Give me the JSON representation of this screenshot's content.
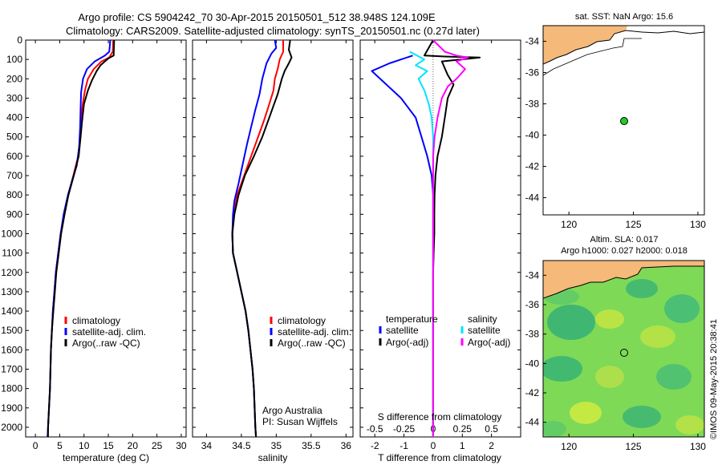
{
  "header": {
    "line1": "Argo profile: CS 5904242_70 30-Apr-2015 20150501_512 38.948S 124.109E",
    "line2": "Climatology: CARS2009. Satellite-adjusted climatology: synTS_20150501.nc (0.27d later)"
  },
  "colors": {
    "climatology": "#ff0000",
    "satellite": "#0000ff",
    "argo": "#000000",
    "sal_satellite": "#00e5ff",
    "sal_argo": "#ff00ff",
    "land": "#f5b97a",
    "float_marker": "#22cc22"
  },
  "chart_data": [
    {
      "type": "line",
      "id": "temperature",
      "xlabel": "temperature (deg C)",
      "ylabel": "",
      "xlim": [
        -2,
        31
      ],
      "ylim": [
        2050,
        0
      ],
      "xticks": [
        0,
        5,
        10,
        15,
        20,
        25,
        30
      ],
      "yticks": [
        0,
        100,
        200,
        300,
        400,
        500,
        600,
        700,
        800,
        900,
        1000,
        1100,
        1200,
        1300,
        1400,
        1500,
        1600,
        1700,
        1800,
        1900,
        2000
      ],
      "legend": [
        "climatology",
        "satellite-adj. clim.",
        "Argo(..raw -QC)"
      ],
      "series": [
        {
          "name": "climatology",
          "color": "#ff0000",
          "points": [
            [
              16,
              0
            ],
            [
              15.9,
              60
            ],
            [
              15.2,
              90
            ],
            [
              13.6,
              110
            ],
            [
              12,
              150
            ],
            [
              10.8,
              200
            ],
            [
              10.2,
              260
            ],
            [
              9.8,
              320
            ],
            [
              9.4,
              400
            ],
            [
              9.2,
              500
            ],
            [
              8.8,
              600
            ],
            [
              7.8,
              700
            ],
            [
              6.8,
              800
            ],
            [
              5.9,
              900
            ],
            [
              5.2,
              1000
            ],
            [
              4.7,
              1100
            ],
            [
              4.2,
              1200
            ],
            [
              3.9,
              1300
            ],
            [
              3.6,
              1400
            ],
            [
              3.4,
              1500
            ],
            [
              3.2,
              1600
            ],
            [
              3,
              1800
            ],
            [
              2.8,
              1900
            ],
            [
              2.6,
              2000
            ],
            [
              2.5,
              2050
            ]
          ]
        },
        {
          "name": "satellite-adj. clim.",
          "color": "#0000ff",
          "points": [
            [
              15.4,
              0
            ],
            [
              15.2,
              60
            ],
            [
              14.3,
              80
            ],
            [
              12.2,
              110
            ],
            [
              10.6,
              150
            ],
            [
              9.8,
              200
            ],
            [
              9.4,
              270
            ],
            [
              9.3,
              350
            ],
            [
              9.2,
              450
            ],
            [
              9,
              550
            ],
            [
              8.5,
              650
            ],
            [
              7.6,
              720
            ],
            [
              6.7,
              800
            ],
            [
              5.8,
              900
            ],
            [
              5.2,
              1000
            ],
            [
              4.7,
              1100
            ],
            [
              4.2,
              1200
            ],
            [
              3.9,
              1300
            ],
            [
              3.6,
              1400
            ],
            [
              3.4,
              1500
            ],
            [
              3.2,
              1600
            ],
            [
              3,
              1800
            ],
            [
              2.8,
              1900
            ],
            [
              2.6,
              2000
            ],
            [
              2.5,
              2050
            ]
          ]
        },
        {
          "name": "Argo(..raw -QC)",
          "color": "#000000",
          "points": [
            [
              16.2,
              0
            ],
            [
              16.1,
              80
            ],
            [
              15,
              95
            ],
            [
              13.4,
              130
            ],
            [
              12.6,
              160
            ],
            [
              11.6,
              210
            ],
            [
              10.8,
              260
            ],
            [
              10,
              330
            ],
            [
              9.6,
              420
            ],
            [
              9.3,
              500
            ],
            [
              8.9,
              600
            ],
            [
              7.9,
              700
            ],
            [
              6.8,
              800
            ],
            [
              6,
              900
            ],
            [
              5.3,
              1000
            ],
            [
              4.8,
              1100
            ],
            [
              4.3,
              1200
            ],
            [
              4,
              1300
            ],
            [
              3.7,
              1400
            ],
            [
              3.4,
              1500
            ],
            [
              3.2,
              1600
            ],
            [
              3,
              1800
            ],
            [
              2.8,
              1900
            ],
            [
              2.6,
              2000
            ],
            [
              2.6,
              2050
            ]
          ]
        }
      ]
    },
    {
      "type": "line",
      "id": "salinity",
      "xlabel": "salinity",
      "xlim": [
        33.8,
        36.1
      ],
      "ylim": [
        2050,
        0
      ],
      "xticks": [
        34,
        34.5,
        35,
        35.5,
        36
      ],
      "xticklabels": [
        "34",
        "34.5",
        "35",
        "35.5",
        "36"
      ],
      "legend": [
        "climatology",
        "satellite-adj. clim.",
        "Argo(..raw -QC)"
      ],
      "annotation": [
        "Argo Australia",
        "PI: Susan Wijffels"
      ],
      "series": [
        {
          "name": "climatology",
          "color": "#ff0000",
          "points": [
            [
              35.1,
              0
            ],
            [
              35.1,
              60
            ],
            [
              35.05,
              100
            ],
            [
              35.02,
              150
            ],
            [
              34.98,
              200
            ],
            [
              34.96,
              260
            ],
            [
              34.9,
              330
            ],
            [
              34.82,
              420
            ],
            [
              34.72,
              520
            ],
            [
              34.62,
              620
            ],
            [
              34.52,
              720
            ],
            [
              34.44,
              800
            ],
            [
              34.39,
              900
            ],
            [
              34.37,
              1000
            ],
            [
              34.38,
              1100
            ],
            [
              34.44,
              1200
            ],
            [
              34.5,
              1300
            ],
            [
              34.56,
              1400
            ],
            [
              34.6,
              1500
            ],
            [
              34.63,
              1600
            ],
            [
              34.66,
              1700
            ],
            [
              34.68,
              1800
            ],
            [
              34.69,
              1900
            ],
            [
              34.7,
              2000
            ],
            [
              34.71,
              2050
            ]
          ]
        },
        {
          "name": "satellite-adj. clim.",
          "color": "#0000ff",
          "points": [
            [
              34.98,
              0
            ],
            [
              35,
              40
            ],
            [
              34.93,
              70
            ],
            [
              34.86,
              120
            ],
            [
              34.8,
              200
            ],
            [
              34.76,
              280
            ],
            [
              34.7,
              360
            ],
            [
              34.64,
              450
            ],
            [
              34.58,
              540
            ],
            [
              34.52,
              640
            ],
            [
              34.46,
              740
            ],
            [
              34.4,
              830
            ],
            [
              34.38,
              900
            ],
            [
              34.37,
              1000
            ],
            [
              34.38,
              1100
            ],
            [
              34.44,
              1200
            ],
            [
              34.5,
              1300
            ],
            [
              34.56,
              1400
            ],
            [
              34.6,
              1500
            ],
            [
              34.63,
              1600
            ],
            [
              34.66,
              1700
            ],
            [
              34.68,
              1800
            ],
            [
              34.69,
              1900
            ],
            [
              34.7,
              2000
            ],
            [
              34.71,
              2050
            ]
          ]
        },
        {
          "name": "Argo(..raw -QC)",
          "color": "#000000",
          "points": [
            [
              35.2,
              0
            ],
            [
              35.18,
              50
            ],
            [
              35.22,
              90
            ],
            [
              35.18,
              120
            ],
            [
              35.12,
              160
            ],
            [
              35.08,
              200
            ],
            [
              35.05,
              240
            ],
            [
              35.02,
              280
            ],
            [
              34.97,
              330
            ],
            [
              34.9,
              400
            ],
            [
              34.8,
              500
            ],
            [
              34.68,
              600
            ],
            [
              34.55,
              700
            ],
            [
              34.46,
              800
            ],
            [
              34.4,
              900
            ],
            [
              34.37,
              1000
            ],
            [
              34.38,
              1100
            ],
            [
              34.44,
              1200
            ],
            [
              34.5,
              1300
            ],
            [
              34.56,
              1400
            ],
            [
              34.6,
              1500
            ],
            [
              34.63,
              1600
            ],
            [
              34.66,
              1700
            ],
            [
              34.68,
              1800
            ],
            [
              34.69,
              1900
            ],
            [
              34.7,
              2000
            ],
            [
              34.71,
              2050
            ]
          ]
        }
      ]
    },
    {
      "type": "line",
      "id": "difference",
      "xlabel": "T difference from climatology",
      "xlabel_top": "S difference from climatology",
      "xlim": [
        -2.5,
        3
      ],
      "ylim": [
        2050,
        0
      ],
      "xticks": [
        -2,
        -1,
        0,
        1,
        2
      ],
      "top_xticks": [
        -0.5,
        -0.25,
        0,
        0.25,
        0.5
      ],
      "top_xticklabels": [
        "-0.5",
        "-0.25",
        "0",
        "0.25",
        "0.5"
      ],
      "legend_titles": [
        "temperature",
        "salinity"
      ],
      "legend": [
        "satellite",
        "Argo(-adj)",
        "satellite",
        "Argo(-adj)"
      ],
      "series": [
        {
          "name": "satellite",
          "group": "temperature",
          "color": "#0000ff",
          "points": [
            [
              -0.7,
              80
            ],
            [
              -1.5,
              120
            ],
            [
              -2.1,
              160
            ],
            [
              -1.6,
              230
            ],
            [
              -1.1,
              300
            ],
            [
              -0.6,
              400
            ],
            [
              -0.4,
              500
            ],
            [
              -0.2,
              600
            ],
            [
              -0.05,
              700
            ],
            [
              0,
              800
            ],
            [
              0,
              2050
            ]
          ]
        },
        {
          "name": "Argo(-adj)",
          "group": "temperature",
          "color": "#000000",
          "points": [
            [
              0,
              0
            ],
            [
              -0.3,
              80
            ],
            [
              0.4,
              85
            ],
            [
              1.6,
              90
            ],
            [
              0.3,
              110
            ],
            [
              0.5,
              180
            ],
            [
              0.7,
              230
            ],
            [
              0.5,
              300
            ],
            [
              0.4,
              400
            ],
            [
              0.3,
              500
            ],
            [
              0.15,
              600
            ],
            [
              0.08,
              700
            ],
            [
              0.05,
              800
            ],
            [
              0.04,
              900
            ],
            [
              0.04,
              1000
            ],
            [
              0.02,
              1100
            ],
            [
              0,
              1200
            ],
            [
              0,
              2050
            ]
          ]
        },
        {
          "name": "satellite",
          "group": "salinity",
          "color": "#00e5ff",
          "points": [
            [
              -0.8,
              60
            ],
            [
              -0.3,
              100
            ],
            [
              -0.6,
              130
            ],
            [
              -0.2,
              160
            ],
            [
              -0.5,
              200
            ],
            [
              -0.3,
              260
            ],
            [
              -0.15,
              330
            ],
            [
              -0.05,
              400
            ],
            [
              0,
              500
            ],
            [
              0,
              2050
            ]
          ]
        },
        {
          "name": "Argo(-adj)",
          "group": "salinity",
          "color": "#ff00ff",
          "points": [
            [
              0,
              0
            ],
            [
              0.4,
              60
            ],
            [
              0.8,
              80
            ],
            [
              1.2,
              90
            ],
            [
              0.8,
              110
            ],
            [
              1.1,
              150
            ],
            [
              0.8,
              200
            ],
            [
              0.5,
              240
            ],
            [
              0.3,
              300
            ],
            [
              0.15,
              400
            ],
            [
              0.05,
              500
            ],
            [
              0,
              600
            ],
            [
              0,
              2050
            ]
          ]
        }
      ]
    }
  ],
  "maps": {
    "sst": {
      "title": "sat. SST: NaN Argo: 15.6",
      "xticks": [
        "120",
        "125",
        "130"
      ],
      "yticks": [
        "-34",
        "-36",
        "-38",
        "-40",
        "-42",
        "-44"
      ]
    },
    "sla": {
      "title1": "Altim. SLA: 0.017",
      "title2": "Argo h1000: 0.027 h2000: 0.018",
      "xticks": [
        "120",
        "125",
        "130"
      ],
      "yticks": [
        "-34",
        "-36",
        "-38",
        "-40",
        "-42",
        "-44"
      ]
    }
  },
  "credit": "©IMOS 09-May-2015 20:38:41"
}
